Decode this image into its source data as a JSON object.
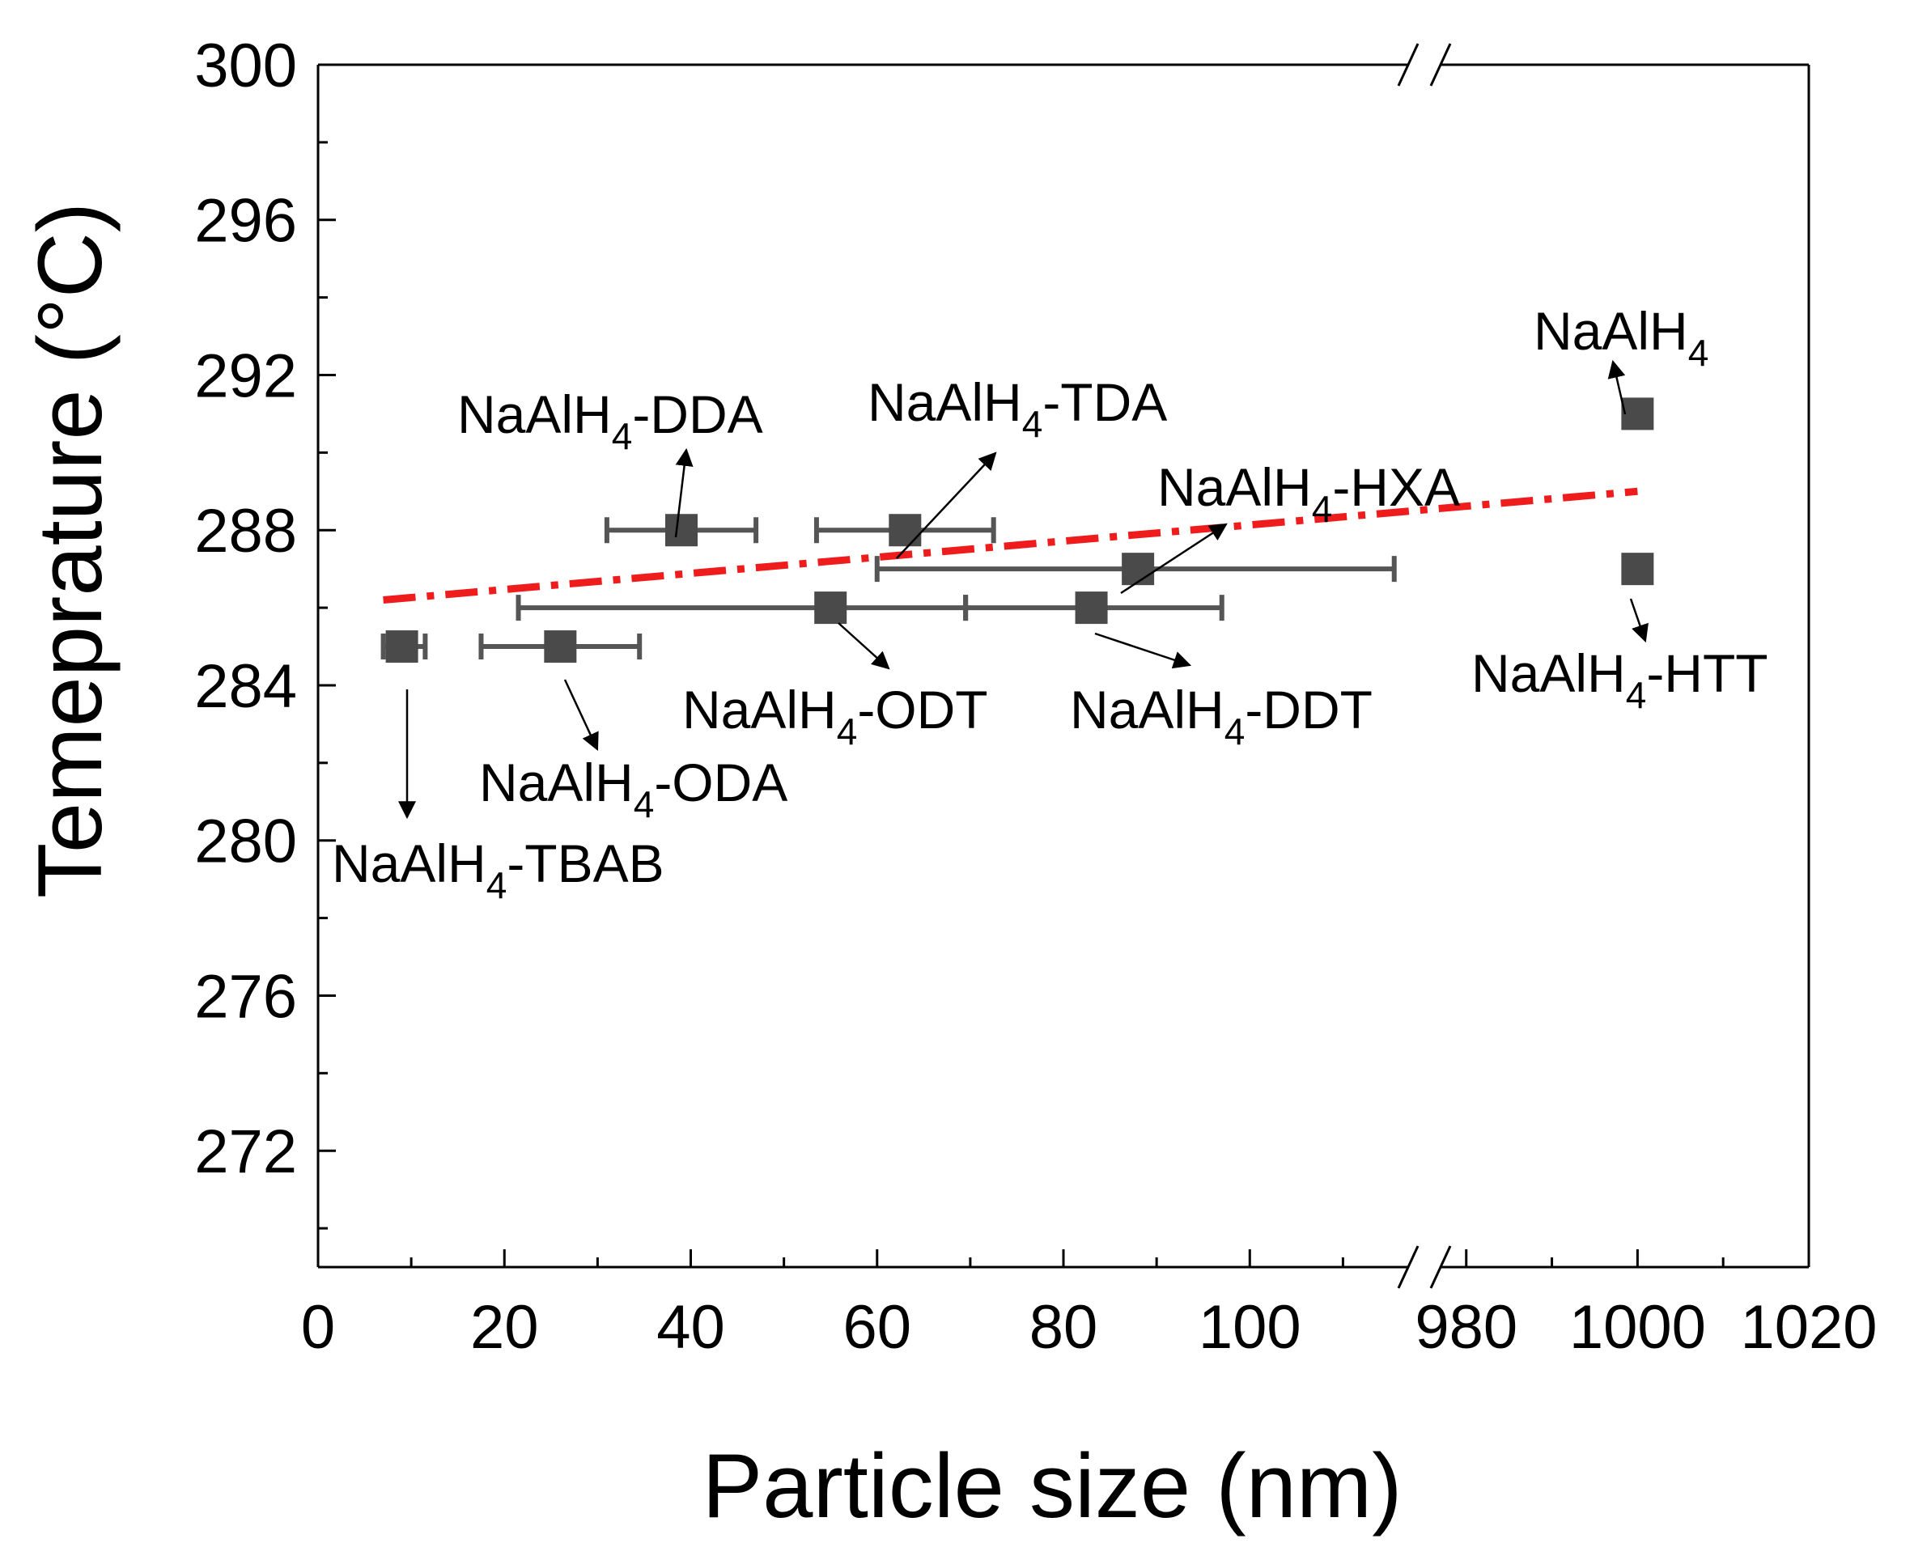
{
  "chart_data": {
    "type": "scatter",
    "title": "",
    "xlabel": "Particle size (nm)",
    "ylabel": "Temeprature (°C)",
    "ylim": [
      269,
      300
    ],
    "yticks": [
      272,
      276,
      280,
      284,
      288,
      292,
      296,
      300
    ],
    "x_break": {
      "lower_range": [
        0,
        117
      ],
      "upper_range": [
        977,
        1020
      ]
    },
    "xticks": [
      0,
      20,
      40,
      60,
      80,
      100,
      980,
      1000,
      1020
    ],
    "grid": false,
    "legend": "none",
    "colors": {
      "marker": "#4a4a4a",
      "errorbar": "#555555",
      "trend": "#ee1c1c",
      "axis": "#000000"
    },
    "points": [
      {
        "name": "NaAlH4-TBAB",
        "label_main": "NaAlH",
        "label_sub": "4",
        "label_suffix": "-TBAB",
        "x": 9,
        "y": 285,
        "xerr_low": 7,
        "xerr_high": 11.5
      },
      {
        "name": "NaAlH4-ODA",
        "label_main": "NaAlH",
        "label_sub": "4",
        "label_suffix": "-ODA",
        "x": 26,
        "y": 285,
        "xerr_low": 17.5,
        "xerr_high": 34.5
      },
      {
        "name": "NaAlH4-DDA",
        "label_main": "NaAlH",
        "label_sub": "4",
        "label_suffix": "-DDA",
        "x": 39,
        "y": 288,
        "xerr_low": 31,
        "xerr_high": 47
      },
      {
        "name": "NaAlH4-ODT",
        "label_main": "NaAlH",
        "label_sub": "4",
        "label_suffix": "-ODT",
        "x": 55,
        "y": 286,
        "xerr_low": 21.5,
        "xerr_high": 69.5
      },
      {
        "name": "NaAlH4-TDA",
        "label_main": "NaAlH",
        "label_sub": "4",
        "label_suffix": "-TDA",
        "x": 63,
        "y": 288,
        "xerr_low": 53.5,
        "xerr_high": 72.5
      },
      {
        "name": "NaAlH4-DDT",
        "label_main": "NaAlH",
        "label_sub": "4",
        "label_suffix": "-DDT",
        "x": 83,
        "y": 286,
        "xerr_low": 69.5,
        "xerr_high": 97
      },
      {
        "name": "NaAlH4-HXA",
        "label_main": "NaAlH",
        "label_sub": "4",
        "label_suffix": "-HXA",
        "x": 88,
        "y": 287,
        "xerr_low": 60,
        "xerr_high": 115.5
      },
      {
        "name": "NaAlH4",
        "label_main": "NaAlH",
        "label_sub": "4",
        "label_suffix": "",
        "x": 1000,
        "y": 291
      },
      {
        "name": "NaAlH4-HTT",
        "label_main": "NaAlH",
        "label_sub": "4",
        "label_suffix": "-HTT",
        "x": 1000,
        "y": 287
      }
    ],
    "trend_line": {
      "style": "dash-dot",
      "start": {
        "x": 7,
        "y": 286.2
      },
      "end": {
        "x": 1000,
        "y": 289
      }
    }
  }
}
